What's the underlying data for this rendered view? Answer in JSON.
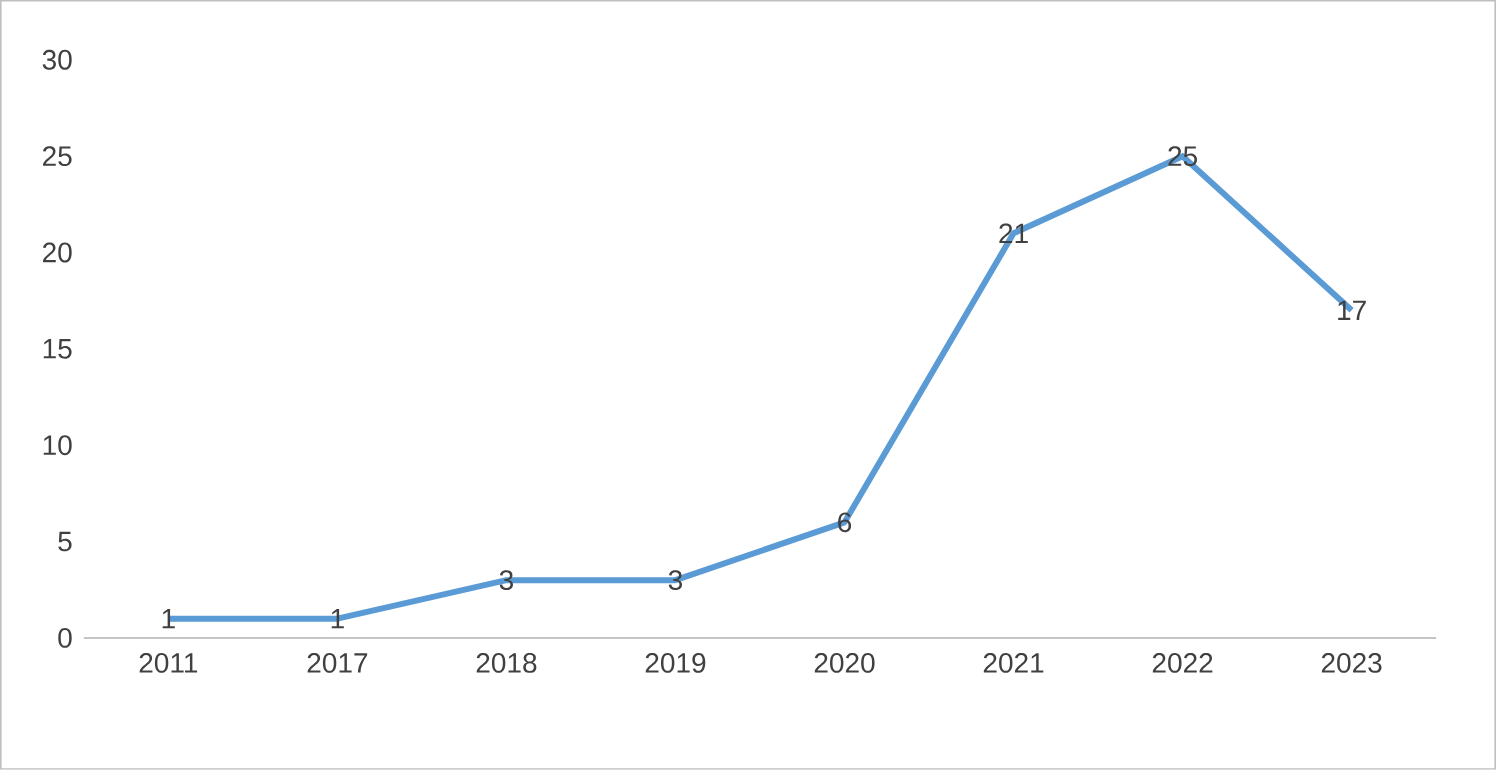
{
  "chart_data": {
    "type": "line",
    "categories": [
      "2011",
      "2017",
      "2018",
      "2019",
      "2020",
      "2021",
      "2022",
      "2023"
    ],
    "values": [
      1,
      1,
      3,
      3,
      6,
      21,
      25,
      17
    ],
    "color": "#5b9bd5",
    "ylim": [
      0,
      30
    ],
    "yticks": [
      0,
      5,
      10,
      15,
      20,
      25,
      30
    ],
    "marker": "none",
    "line_style": "solid",
    "data_labels": true
  }
}
